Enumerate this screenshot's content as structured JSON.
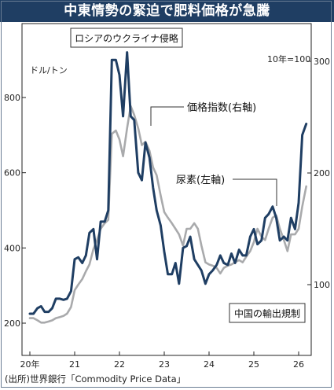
{
  "title": "中東情勢の緊迫で肥料価格が急騰",
  "source": "(出所)世界銀行「Commodity Price Data」",
  "chart_data": {
    "type": "line",
    "x_ticks": [
      "20年",
      "21",
      "22",
      "23",
      "24",
      "25",
      "26"
    ],
    "left_axis": {
      "unit": "ドル/トン",
      "ticks": [
        200,
        400,
        600,
        800
      ],
      "tick_labels": [
        "200",
        "400",
        "600",
        "800"
      ],
      "range": [
        120,
        1000
      ]
    },
    "right_axis": {
      "unit": "10年=100",
      "ticks": [
        100,
        200,
        300
      ],
      "tick_labels": [
        "100",
        "200",
        "300"
      ],
      "range": [
        50,
        320
      ]
    },
    "annotations": {
      "russia_invasion": "ロシアのウクライナ侵略",
      "china_export": "中国の輸出規制",
      "price_index_label": "価格指数(右軸)",
      "urea_label": "尿素(左軸)"
    },
    "series": [
      {
        "name": "尿素(左軸)",
        "axis": "left",
        "color": "#1f3e63",
        "x": [
          2020.0,
          2020.08,
          2020.17,
          2020.25,
          2020.33,
          2020.42,
          2020.5,
          2020.58,
          2020.67,
          2020.75,
          2020.83,
          2020.92,
          2021.0,
          2021.08,
          2021.17,
          2021.25,
          2021.33,
          2021.42,
          2021.5,
          2021.58,
          2021.67,
          2021.75,
          2021.83,
          2021.92,
          2022.0,
          2022.08,
          2022.17,
          2022.25,
          2022.33,
          2022.42,
          2022.5,
          2022.58,
          2022.67,
          2022.75,
          2022.83,
          2022.92,
          2023.0,
          2023.08,
          2023.17,
          2023.25,
          2023.33,
          2023.42,
          2023.5,
          2023.58,
          2023.67,
          2023.75,
          2023.83,
          2023.92,
          2024.0,
          2024.08,
          2024.17,
          2024.25,
          2024.33,
          2024.42,
          2024.5,
          2024.58,
          2024.67,
          2024.75,
          2024.83,
          2024.92,
          2025.0,
          2025.08,
          2025.17,
          2025.25,
          2025.33,
          2025.42,
          2025.5,
          2025.58,
          2025.67,
          2025.75,
          2025.83,
          2025.92,
          2026.0,
          2026.08,
          2026.17
        ],
        "values": [
          225,
          225,
          240,
          245,
          230,
          230,
          240,
          265,
          265,
          262,
          265,
          285,
          370,
          375,
          360,
          380,
          440,
          450,
          370,
          470,
          470,
          500,
          900,
          900,
          860,
          750,
          920,
          750,
          740,
          600,
          580,
          680,
          640,
          560,
          500,
          460,
          390,
          330,
          330,
          360,
          305,
          400,
          405,
          430,
          370,
          355,
          340,
          305,
          330,
          340,
          355,
          380,
          360,
          355,
          385,
          360,
          395,
          380,
          380,
          430,
          450,
          410,
          420,
          480,
          490,
          510,
          480,
          420,
          430,
          420,
          480,
          450,
          520,
          700,
          730
        ]
      },
      {
        "name": "価格指数(右軸)",
        "axis": "right",
        "color": "#a9aaac",
        "x": [
          2020.0,
          2020.08,
          2020.17,
          2020.25,
          2020.33,
          2020.42,
          2020.5,
          2020.58,
          2020.67,
          2020.75,
          2020.83,
          2020.92,
          2021.0,
          2021.08,
          2021.17,
          2021.25,
          2021.33,
          2021.42,
          2021.5,
          2021.58,
          2021.67,
          2021.75,
          2021.83,
          2021.92,
          2022.0,
          2022.08,
          2022.17,
          2022.25,
          2022.33,
          2022.42,
          2022.5,
          2022.58,
          2022.67,
          2022.75,
          2022.83,
          2022.92,
          2023.0,
          2023.08,
          2023.17,
          2023.25,
          2023.33,
          2023.42,
          2023.5,
          2023.58,
          2023.67,
          2023.75,
          2023.83,
          2023.92,
          2024.0,
          2024.08,
          2024.17,
          2024.25,
          2024.33,
          2024.42,
          2024.5,
          2024.58,
          2024.67,
          2024.75,
          2024.83,
          2024.92,
          2025.0,
          2025.08,
          2025.17,
          2025.25,
          2025.33,
          2025.42,
          2025.5,
          2025.58,
          2025.67,
          2025.75,
          2025.83,
          2025.92,
          2026.0,
          2026.08,
          2026.17
        ],
        "values": [
          70,
          70,
          68,
          66,
          66,
          67,
          68,
          70,
          71,
          72,
          74,
          80,
          95,
          100,
          105,
          112,
          118,
          132,
          140,
          150,
          155,
          158,
          235,
          238,
          230,
          215,
          240,
          260,
          252,
          240,
          225,
          228,
          220,
          205,
          198,
          180,
          165,
          160,
          155,
          150,
          145,
          135,
          150,
          150,
          155,
          150,
          135,
          120,
          118,
          117,
          115,
          110,
          115,
          117,
          118,
          120,
          122,
          120,
          125,
          130,
          138,
          150,
          143,
          140,
          150,
          160,
          162,
          150,
          140,
          130,
          145,
          145,
          150,
          170,
          188
        ]
      }
    ]
  }
}
